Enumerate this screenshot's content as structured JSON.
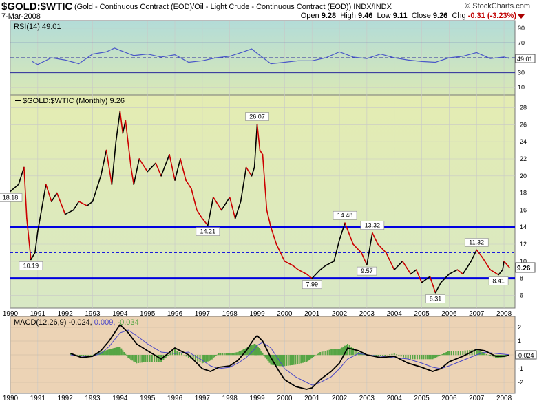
{
  "header": {
    "symbol": "$GOLD:$WTIC",
    "description": "(Gold - Continuous Contract (EOD)/Oil - Light Crude - Continuous Contract (EOD))  INDX/INDX",
    "date": "7-Mar-2008",
    "watermark": "© StockCharts.com",
    "open_label": "Open",
    "open": "9.28",
    "high_label": "High",
    "high": "9.46",
    "low_label": "Low",
    "low": "9.11",
    "close_label": "Close",
    "close": "9.26",
    "chg_label": "Chg",
    "chg": "-0.31 (-3.23%)"
  },
  "colors": {
    "rsi_bg_top": "#b3dcd8",
    "rsi_bg_bottom": "#d9e8b6",
    "price_bg_top": "#e4ecb2",
    "price_bg_bottom": "#d8e8c4",
    "macd_bg": "#ecd3b5",
    "rsi_line": "#4a57c8",
    "price_up": "#000000",
    "price_down": "#cc0000",
    "support_line": "#0000e0",
    "macd_hist": "#55a544",
    "macd_signal": "#4a48c8"
  },
  "chart_data": [
    {
      "type": "line",
      "panel": "rsi",
      "legend": "RSI(14) 49.01",
      "last_value_label": "49.01",
      "ylim": [
        0,
        100
      ],
      "ticks": [
        10,
        30,
        50,
        70,
        90
      ],
      "reference_lines": [
        30,
        50,
        70
      ],
      "x": [
        1990.8,
        1991.0,
        1991.5,
        1992.0,
        1992.5,
        1993.0,
        1993.5,
        1993.8,
        1994.0,
        1994.5,
        1995.0,
        1995.5,
        1996.0,
        1996.5,
        1997.0,
        1997.5,
        1998.0,
        1998.5,
        1998.8,
        1999.0,
        1999.5,
        2000.0,
        2000.5,
        2001.0,
        2001.5,
        2002.0,
        2002.5,
        2003.0,
        2003.5,
        2004.0,
        2004.5,
        2005.0,
        2005.5,
        2006.0,
        2006.5,
        2007.0,
        2007.5,
        2008.0,
        2008.2
      ],
      "y": [
        45,
        41,
        50,
        47,
        42,
        55,
        58,
        63,
        60,
        53,
        55,
        51,
        54,
        44,
        46,
        50,
        52,
        58,
        62,
        56,
        42,
        44,
        46,
        46,
        50,
        58,
        51,
        49,
        55,
        50,
        47,
        45,
        44,
        50,
        52,
        57,
        49,
        51,
        49
      ]
    },
    {
      "type": "line",
      "panel": "price",
      "legend": "$GOLD:$WTIC (Monthly) 9.26",
      "last_value_label": "9.26",
      "ylim": [
        4.5,
        29.5
      ],
      "ticks": [
        6,
        8,
        10,
        12,
        14,
        16,
        18,
        20,
        22,
        24,
        26,
        28
      ],
      "xlim": [
        1990,
        2008.4
      ],
      "x_ticks": [
        "1990",
        "1991",
        "1992",
        "1993",
        "1994",
        "1995",
        "1996",
        "1997",
        "1998",
        "1999",
        "2000",
        "2001",
        "2002",
        "2003",
        "2004",
        "2005",
        "2006",
        "2007",
        "2008"
      ],
      "horizontal_lines": [
        14,
        8
      ],
      "dashed_line": 11,
      "x": [
        1990.0,
        1990.3,
        1990.5,
        1990.6,
        1990.75,
        1990.9,
        1991.0,
        1991.3,
        1991.5,
        1991.7,
        1992.0,
        1992.3,
        1992.5,
        1992.8,
        1993.0,
        1993.3,
        1993.5,
        1993.7,
        1993.85,
        1994.0,
        1994.1,
        1994.2,
        1994.4,
        1994.5,
        1994.7,
        1995.0,
        1995.3,
        1995.5,
        1995.8,
        1996.0,
        1996.2,
        1996.4,
        1996.6,
        1996.8,
        1997.0,
        1997.2,
        1997.4,
        1997.7,
        1998.0,
        1998.2,
        1998.4,
        1998.6,
        1998.8,
        1998.9,
        1999.0,
        1999.1,
        1999.2,
        1999.35,
        1999.5,
        1999.7,
        2000.0,
        2000.3,
        2000.5,
        2000.8,
        2001.0,
        2001.3,
        2001.5,
        2001.8,
        2002.0,
        2002.2,
        2002.5,
        2002.8,
        2003.0,
        2003.2,
        2003.4,
        2003.7,
        2004.0,
        2004.3,
        2004.6,
        2004.8,
        2005.0,
        2005.3,
        2005.5,
        2005.7,
        2006.0,
        2006.3,
        2006.5,
        2006.8,
        2007.0,
        2007.2,
        2007.5,
        2007.8,
        2007.95,
        2008.0,
        2008.2
      ],
      "y": [
        18.18,
        19.0,
        21.0,
        15.0,
        10.19,
        11.0,
        13.5,
        19.0,
        17.0,
        18.0,
        15.5,
        16.0,
        17.0,
        16.5,
        17.0,
        20.0,
        23.0,
        19.0,
        24.0,
        27.6,
        25.0,
        26.5,
        21.0,
        19.0,
        22.0,
        20.5,
        21.5,
        20.0,
        22.5,
        19.5,
        22.0,
        19.5,
        18.5,
        16.0,
        15.0,
        14.21,
        17.5,
        16.0,
        17.5,
        15.0,
        17.0,
        21.0,
        20.0,
        21.0,
        26.07,
        23.0,
        22.5,
        16.0,
        14.0,
        12.0,
        10.0,
        9.5,
        9.0,
        8.5,
        7.99,
        9.0,
        9.5,
        10.0,
        12.5,
        14.48,
        12.0,
        11.0,
        9.57,
        13.32,
        12.0,
        11.0,
        9.0,
        10.0,
        8.5,
        9.0,
        7.5,
        8.2,
        6.31,
        7.5,
        8.5,
        9.0,
        8.5,
        10.0,
        11.32,
        10.5,
        9.0,
        8.41,
        9.0,
        10.0,
        9.26
      ],
      "annotations": [
        {
          "x": 1990.0,
          "y": 18.18,
          "label": "18.18"
        },
        {
          "x": 1990.75,
          "y": 10.19,
          "label": "10.19"
        },
        {
          "x": 1994.0,
          "y": 27.6,
          "label": ""
        },
        {
          "x": 1997.2,
          "y": 14.21,
          "label": "14.21"
        },
        {
          "x": 1999.0,
          "y": 26.07,
          "label": "26.07"
        },
        {
          "x": 2001.0,
          "y": 7.99,
          "label": "7.99"
        },
        {
          "x": 2002.2,
          "y": 14.48,
          "label": "14.48"
        },
        {
          "x": 2003.0,
          "y": 9.57,
          "label": "9.57"
        },
        {
          "x": 2003.2,
          "y": 13.32,
          "label": "13.32"
        },
        {
          "x": 2005.5,
          "y": 6.31,
          "label": "6.31"
        },
        {
          "x": 2007.0,
          "y": 11.32,
          "label": "11.32"
        },
        {
          "x": 2007.8,
          "y": 8.41,
          "label": "8.41"
        }
      ]
    },
    {
      "type": "line",
      "panel": "macd",
      "legend_label": "MACD(12,26,9)",
      "legend_macd": "-0.024,",
      "legend_signal": "0.009,",
      "legend_hist": "-0.034",
      "last_value_label": "-0.024",
      "ylim": [
        -2.8,
        2.8
      ],
      "ticks": [
        -2,
        -1,
        0,
        1,
        2
      ],
      "x": [
        1992.2,
        1992.6,
        1993.0,
        1993.3,
        1993.6,
        1993.8,
        1994.0,
        1994.3,
        1994.6,
        1995.0,
        1995.5,
        1996.0,
        1996.5,
        1997.0,
        1997.3,
        1997.6,
        1998.0,
        1998.3,
        1998.6,
        1998.9,
        1999.0,
        1999.2,
        1999.5,
        1999.8,
        2000.0,
        2000.4,
        2000.8,
        2001.0,
        2001.3,
        2001.7,
        2002.0,
        2002.3,
        2002.7,
        2003.0,
        2003.5,
        2004.0,
        2004.5,
        2005.0,
        2005.4,
        2005.7,
        2006.0,
        2006.5,
        2007.0,
        2007.3,
        2007.7,
        2008.0,
        2008.2
      ],
      "series": [
        {
          "name": "MACD",
          "values": [
            0.1,
            -0.2,
            -0.1,
            0.3,
            1.0,
            1.6,
            2.2,
            1.6,
            0.8,
            0.3,
            -0.3,
            0.5,
            0.0,
            -1.0,
            -1.2,
            -0.9,
            -0.8,
            -0.4,
            0.3,
            1.2,
            1.4,
            1.0,
            -0.2,
            -1.2,
            -1.8,
            -2.3,
            -2.5,
            -2.4,
            -1.8,
            -1.2,
            -0.6,
            0.5,
            0.3,
            0.0,
            -0.2,
            -0.1,
            -0.6,
            -0.9,
            -1.2,
            -1.0,
            -0.5,
            -0.1,
            0.4,
            0.3,
            -0.1,
            -0.1,
            -0.024
          ]
        },
        {
          "name": "Signal",
          "values": [
            0.0,
            -0.1,
            -0.1,
            0.1,
            0.6,
            1.1,
            1.6,
            1.8,
            1.4,
            0.8,
            0.2,
            0.1,
            0.2,
            -0.4,
            -0.8,
            -1.0,
            -0.9,
            -0.6,
            -0.2,
            0.4,
            0.7,
            0.9,
            0.5,
            -0.4,
            -1.0,
            -1.6,
            -2.0,
            -2.2,
            -2.0,
            -1.6,
            -1.0,
            -0.3,
            0.1,
            0.0,
            -0.1,
            -0.2,
            -0.3,
            -0.6,
            -0.9,
            -1.0,
            -0.8,
            -0.4,
            0.0,
            0.2,
            0.1,
            0.05,
            0.009
          ]
        }
      ]
    }
  ]
}
